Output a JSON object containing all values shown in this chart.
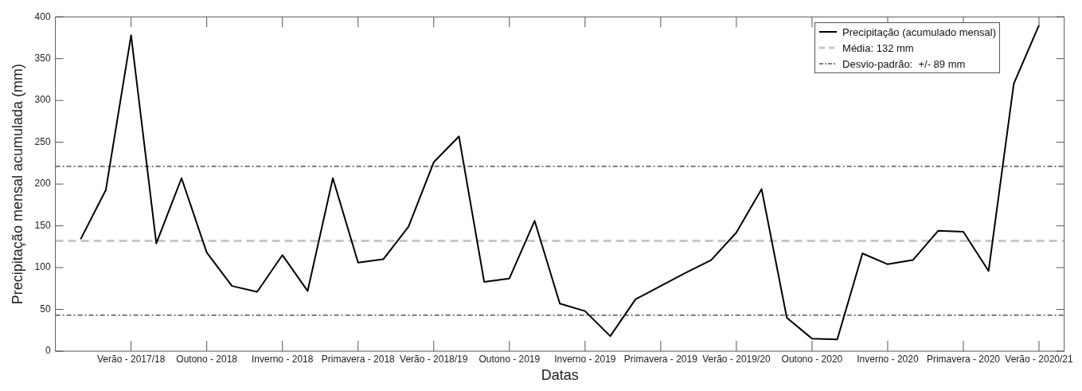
{
  "chart_data": {
    "type": "line",
    "xlabel": "Datas",
    "ylabel": "Precipitação mensal acumulada (mm)",
    "categories": [
      null,
      null,
      "Verão - 2017/18",
      null,
      null,
      "Outono - 2018",
      null,
      null,
      "Inverno - 2018",
      null,
      null,
      "Primavera - 2018",
      null,
      null,
      "Verão - 2018/19",
      null,
      null,
      "Outono - 2019",
      null,
      null,
      "Inverno - 2019",
      null,
      null,
      "Primavera - 2019",
      null,
      null,
      "Verão - 2019/20",
      null,
      null,
      "Outono - 2020",
      null,
      null,
      "Inverno - 2020",
      null,
      null,
      "Primavera - 2020",
      null,
      null,
      "Verão - 2020/21"
    ],
    "series": [
      {
        "name": "Precipitação (acumulado mensal)",
        "color": "#000000",
        "values": [
          134,
          193,
          378,
          129,
          207,
          118,
          78,
          71,
          115,
          72,
          207,
          106,
          110,
          149,
          226,
          257,
          83,
          87,
          156,
          57,
          48,
          18,
          62,
          78,
          94,
          109,
          142,
          194,
          40,
          15,
          14,
          117,
          104,
          109,
          144,
          143,
          96,
          320,
          390
        ]
      }
    ],
    "ref_lines": [
      {
        "axis": "y",
        "value": 132,
        "label": "Média: 132 mm",
        "color": "#c8c8c8",
        "line_style": "dashed"
      },
      {
        "axis": "y",
        "value": 221,
        "label": "Desvio-padrão:  +/- 89 mm",
        "color": "#555555",
        "line_style": "dashdot"
      },
      {
        "axis": "y",
        "value": 43,
        "color": "#555555",
        "line_style": "dashdot"
      }
    ],
    "ylim": [
      0,
      400
    ],
    "yticks": [
      0,
      50,
      100,
      150,
      200,
      250,
      300,
      350,
      400
    ],
    "grid": false,
    "legend": "top right",
    "marker": "none",
    "line_style": "solid"
  }
}
